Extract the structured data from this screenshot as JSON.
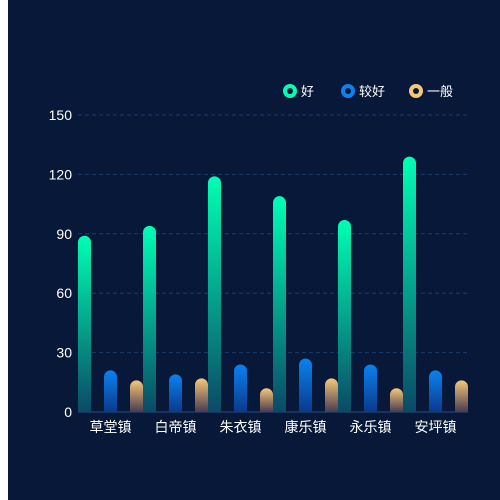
{
  "chart_data": {
    "type": "bar",
    "categories": [
      "草堂镇",
      "白帝镇",
      "朱衣镇",
      "康乐镇",
      "永乐镇",
      "安坪镇"
    ],
    "series": [
      {
        "name": "好",
        "values": [
          89,
          94,
          119,
          109,
          97,
          129
        ],
        "color_top": "#00ffb4",
        "color_bottom": "#0a4a66"
      },
      {
        "name": "较好",
        "values": [
          21,
          19,
          24,
          27,
          24,
          21
        ],
        "color_top": "#0a82f0",
        "color_bottom": "#0a3a8c"
      },
      {
        "name": "一般",
        "values": [
          16,
          17,
          12,
          17,
          12,
          16
        ],
        "color_top": "#f5c878",
        "color_bottom": "#4a3a50"
      }
    ],
    "yticks": [
      0,
      30,
      60,
      90,
      120,
      150
    ],
    "ylim": [
      0,
      150
    ],
    "legend_position": "top-right",
    "grid": "dashed horizontal"
  },
  "colors": {
    "background": "#071838",
    "grid": "#1c3d6e",
    "text": "#ffffff"
  }
}
